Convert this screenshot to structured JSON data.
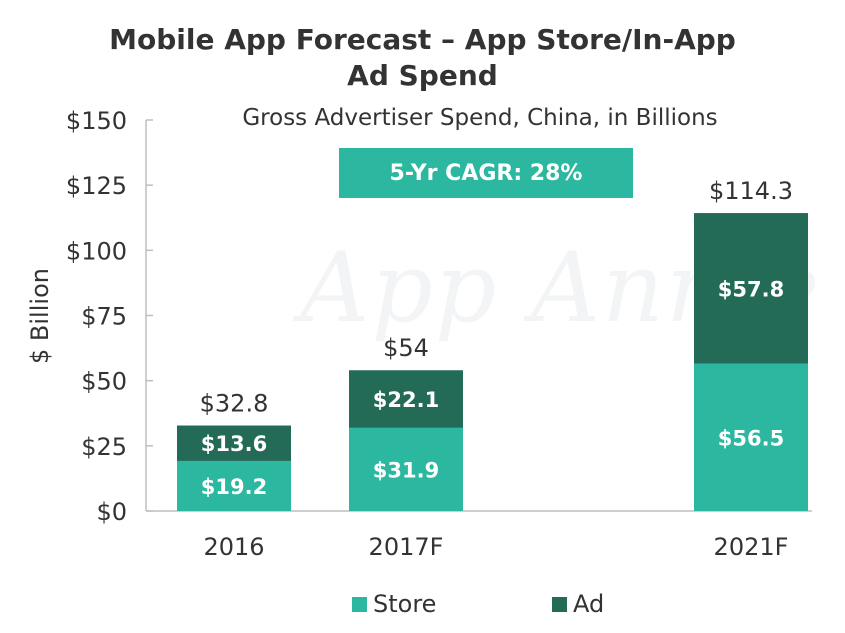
{
  "chart_data": {
    "type": "bar",
    "stacked": true,
    "title_line1": "Mobile App Forecast – App Store/In-App",
    "title_line2": "Ad Spend",
    "subtitle": "Gross Advertiser Spend, China, in Billions",
    "annotation": "5-Yr CAGR: 28%",
    "watermark": "App Annie",
    "ylabel": "$ Billion",
    "xlabel": "",
    "ylim": [
      0,
      150
    ],
    "yticks": [
      0,
      25,
      50,
      75,
      100,
      125,
      150
    ],
    "ytick_labels": [
      "$0",
      "$25",
      "$50",
      "$75",
      "$100",
      "$125",
      "$150"
    ],
    "categories": [
      "2016",
      "2017F",
      "2021F"
    ],
    "series": [
      {
        "name": "Store",
        "color": "#2cb8a0",
        "values": [
          19.2,
          31.9,
          56.5
        ],
        "labels": [
          "$19.2",
          "$31.9",
          "$56.5"
        ]
      },
      {
        "name": "Ad",
        "color": "#246b57",
        "values": [
          13.6,
          22.1,
          57.8
        ],
        "labels": [
          "$13.6",
          "$22.1",
          "$57.8"
        ]
      }
    ],
    "totals": [
      32.8,
      54,
      114.3
    ],
    "total_labels": [
      "$32.8",
      "$54",
      "$114.3"
    ],
    "grid": false,
    "legend_position": "bottom-center"
  }
}
